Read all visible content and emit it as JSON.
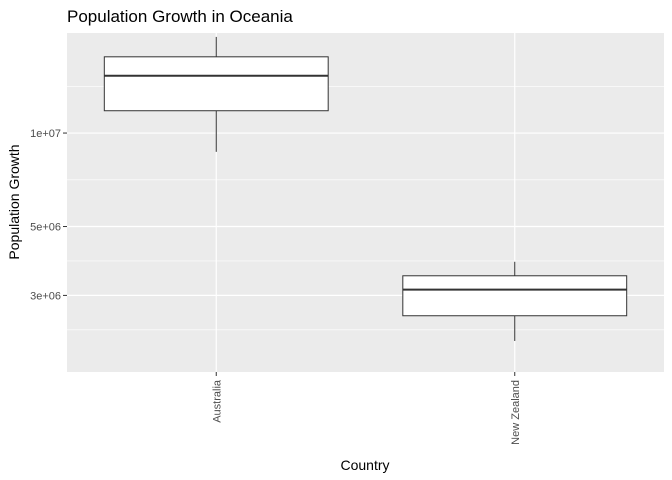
{
  "chart_data": {
    "type": "boxplot",
    "title": "Population Growth in Oceania",
    "xlabel": "Country",
    "ylabel": "Population Growth",
    "y_scale": "log10",
    "ylim": [
      1700000,
      21000000
    ],
    "yticks": [
      {
        "value": 3000000,
        "label": "3e+06"
      },
      {
        "value": 5000000,
        "label": "5e+06"
      },
      {
        "value": 10000000,
        "label": "1e+07"
      }
    ],
    "grid": true,
    "categories": [
      "Australia",
      "New Zealand"
    ],
    "boxes": [
      {
        "category": "Australia",
        "min": 8700000,
        "q1": 11800000,
        "median": 15300000,
        "q3": 17600000,
        "max": 20400000
      },
      {
        "category": "New Zealand",
        "min": 2140000,
        "q1": 2580000,
        "median": 3130000,
        "q3": 3470000,
        "max": 3850000
      }
    ],
    "colors": {
      "panel_background": "#ebebeb",
      "grid_major": "#ffffff",
      "box_fill": "#ffffff",
      "box_stroke": "#333333"
    }
  }
}
